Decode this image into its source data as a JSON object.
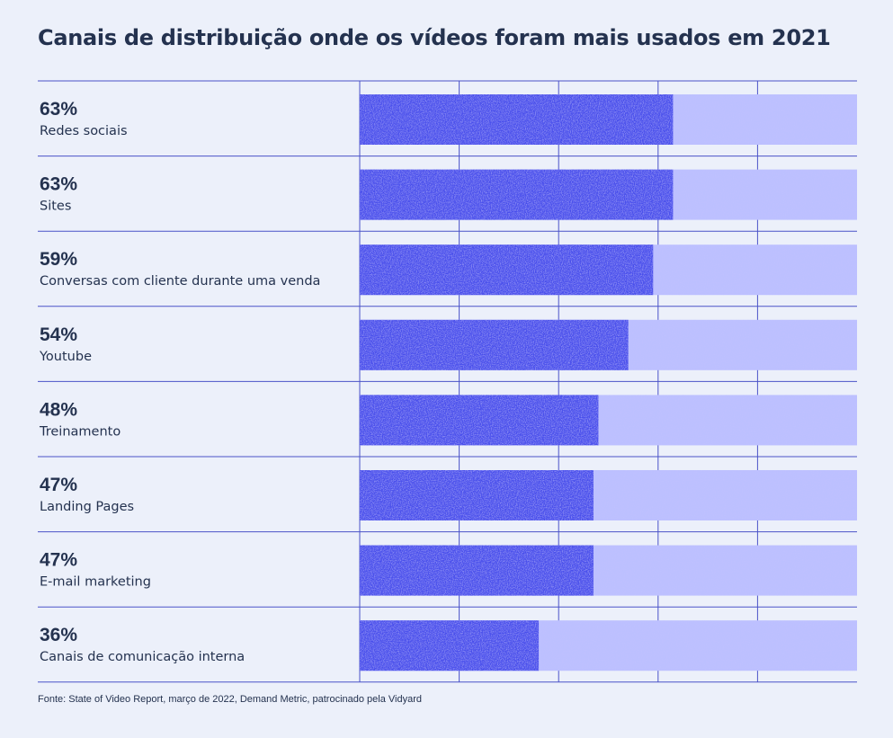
{
  "page": {
    "title": "Canais de distribuição onde os vídeos foram mais usados em 2021",
    "source": "Fonte: State of Video Report, março de 2022, Demand Metric, patrocinado pela Vidyard"
  },
  "colors": {
    "background": "#ecf0fa",
    "bar_fill": "#4a4fec",
    "bar_track": "#bcc0ff",
    "grid": "#4a52c8",
    "text": "#24324f"
  },
  "chart_data": {
    "type": "bar",
    "orientation": "horizontal",
    "title": "Canais de distribuição onde os vídeos foram mais usados em 2021",
    "categories": [
      "Redes sociais",
      "Sites",
      "Conversas com cliente durante uma venda",
      "Youtube",
      "Treinamento",
      "Landing Pages",
      "E-mail marketing",
      "Canais de comunicação interna"
    ],
    "values": [
      63,
      63,
      59,
      54,
      48,
      47,
      47,
      36
    ],
    "value_labels": [
      "63%",
      "63%",
      "59%",
      "54%",
      "48%",
      "47%",
      "47%",
      "36%"
    ],
    "xlim": [
      0,
      100
    ],
    "grid": true,
    "legend": "none"
  }
}
